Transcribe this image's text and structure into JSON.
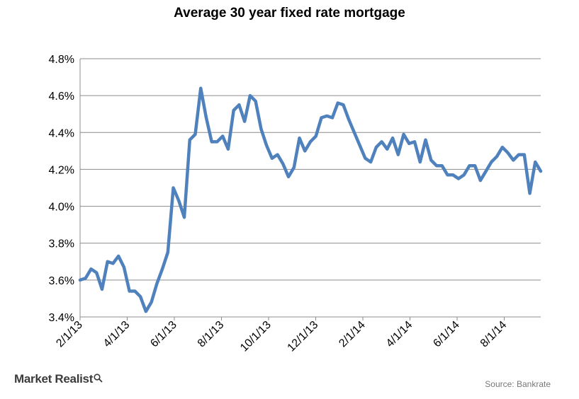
{
  "chart_data": {
    "type": "line",
    "title": "Average 30 year fixed rate mortgage",
    "xlabel": "",
    "ylabel": "",
    "ylim": [
      3.4,
      4.8
    ],
    "yticks": [
      "3.4%",
      "3.6%",
      "3.8%",
      "4.0%",
      "4.2%",
      "4.4%",
      "4.6%",
      "4.8%"
    ],
    "ytick_values": [
      3.4,
      3.6,
      3.8,
      4.0,
      4.2,
      4.4,
      4.6,
      4.8
    ],
    "xticks": [
      "2/1/13",
      "4/1/13",
      "6/1/13",
      "8/1/13",
      "10/1/13",
      "12/1/13",
      "2/1/14",
      "4/1/14",
      "6/1/14",
      "8/1/14"
    ],
    "grid": true,
    "line_color": "#4f81bd",
    "series": [
      {
        "name": "Average 30 year fixed rate mortgage",
        "values": [
          3.6,
          3.61,
          3.66,
          3.64,
          3.55,
          3.7,
          3.69,
          3.73,
          3.67,
          3.54,
          3.54,
          3.51,
          3.43,
          3.48,
          3.58,
          3.66,
          3.75,
          4.1,
          4.03,
          3.94,
          4.36,
          4.39,
          4.64,
          4.48,
          4.35,
          4.35,
          4.38,
          4.31,
          4.52,
          4.55,
          4.46,
          4.6,
          4.57,
          4.42,
          4.33,
          4.26,
          4.28,
          4.23,
          4.16,
          4.21,
          4.37,
          4.3,
          4.35,
          4.38,
          4.48,
          4.49,
          4.48,
          4.56,
          4.55,
          4.47,
          4.4,
          4.33,
          4.26,
          4.24,
          4.32,
          4.35,
          4.31,
          4.37,
          4.28,
          4.39,
          4.34,
          4.35,
          4.24,
          4.36,
          4.25,
          4.22,
          4.22,
          4.17,
          4.17,
          4.15,
          4.17,
          4.22,
          4.22,
          4.14,
          4.19,
          4.24,
          4.27,
          4.32,
          4.29,
          4.25,
          4.28,
          4.28,
          4.07,
          4.24,
          4.19
        ]
      }
    ]
  },
  "branding": {
    "name": "Market Realist",
    "icon": "magnifier-icon"
  },
  "source": "Source: Bankrate"
}
